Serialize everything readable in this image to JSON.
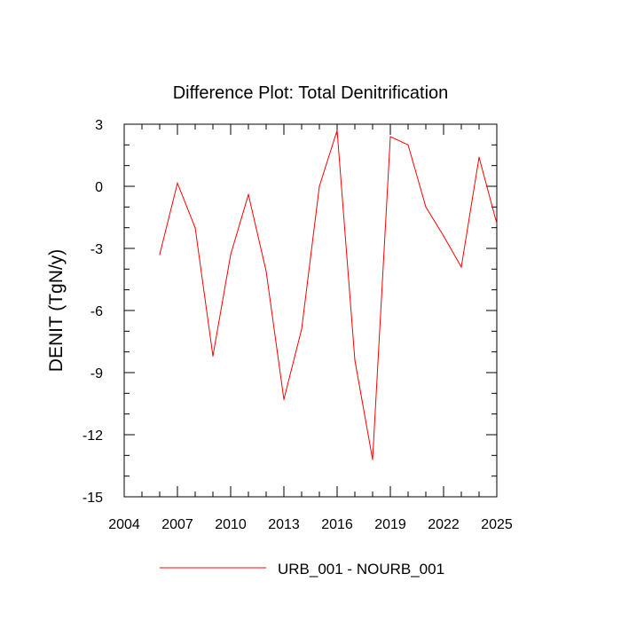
{
  "chart_data": {
    "type": "line",
    "title": "Difference Plot: Total Denitrification",
    "xlabel": "",
    "ylabel": "DENIT  (TgN/y)",
    "xlim": [
      2004,
      2025
    ],
    "ylim": [
      -15,
      3
    ],
    "x_ticks": [
      2004,
      2007,
      2010,
      2013,
      2016,
      2019,
      2022,
      2025
    ],
    "x_tick_labels": [
      "2004",
      "2007",
      "2010",
      "2013",
      "2016",
      "2019",
      "2022",
      "2025"
    ],
    "y_ticks": [
      -15,
      -12,
      -9,
      -6,
      -3,
      0,
      3
    ],
    "y_tick_labels": [
      "-15",
      "-12",
      "-9",
      "-6",
      "-3",
      "0",
      "3"
    ],
    "grid": false,
    "legend_position": "bottom-center",
    "series": [
      {
        "name": "URB_001 - NOURB_001",
        "color": "#ff0000",
        "x": [
          2006,
          2007,
          2008,
          2009,
          2010,
          2011,
          2012,
          2013,
          2014,
          2015,
          2016,
          2017,
          2018,
          2019,
          2020,
          2021,
          2022,
          2023,
          2024,
          2025
        ],
        "values": [
          -3.3,
          0.15,
          -2.0,
          -8.2,
          -3.3,
          -0.4,
          -4.1,
          -10.3,
          -6.9,
          0.0,
          2.7,
          -8.4,
          -13.2,
          2.4,
          2.0,
          -1.0,
          -2.4,
          -3.9,
          1.4,
          -1.8
        ]
      }
    ]
  }
}
